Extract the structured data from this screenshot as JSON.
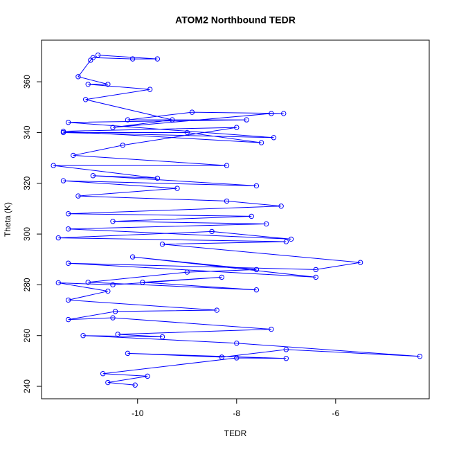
{
  "chart_data": {
    "type": "scatter",
    "title": "ATOM2 Northbound TEDR",
    "x_label": "TEDR",
    "y_label": "Theta (K)",
    "connect": true,
    "color": "#0000ff",
    "marker": "circle-open",
    "xlim": [
      -11.94,
      -4.11
    ],
    "ylim": [
      235.1,
      376.4
    ],
    "xticks": [
      -10,
      -8,
      -6
    ],
    "yticks": [
      240,
      260,
      280,
      300,
      320,
      340,
      360
    ],
    "x": [
      -10.8,
      -9.6,
      -10.1,
      -10.9,
      -10.95,
      -11.2,
      -10.6,
      -11.0,
      -9.75,
      -11.05,
      -9.3,
      -10.5,
      -7.3,
      -7.05,
      -8.9,
      -10.2,
      -7.8,
      -11.4,
      -7.25,
      -11.5,
      -9.0,
      -7.5,
      -11.5,
      -8.0,
      -10.3,
      -11.3,
      -8.2,
      -11.7,
      -9.6,
      -10.9,
      -7.6,
      -11.5,
      -9.2,
      -11.2,
      -8.2,
      -7.1,
      -11.4,
      -7.7,
      -10.5,
      -7.4,
      -11.4,
      -6.9,
      -8.5,
      -11.6,
      -7.0,
      -9.5,
      -5.5,
      -6.4,
      -11.4,
      -6.4,
      -10.1,
      -7.6,
      -9.0,
      -11.0,
      -7.6,
      -9.9,
      -8.3,
      -10.5,
      -11.6,
      -10.6,
      -11.4,
      -8.4,
      -10.45,
      -11.4,
      -10.5,
      -7.3,
      -10.4,
      -9.5,
      -11.1,
      -8.0,
      -4.3,
      -7.0,
      -8.3,
      -10.2,
      -7.0,
      -8.0,
      -10.7,
      -9.8,
      -10.6,
      -10.05
    ],
    "values": [
      370.5,
      369,
      369,
      369.5,
      368.5,
      362,
      359,
      359,
      357,
      353,
      345,
      342,
      347.5,
      347.5,
      348,
      345,
      345,
      344,
      338,
      340,
      340,
      336,
      340.5,
      342,
      335,
      331,
      327,
      327,
      322,
      323,
      319,
      321,
      318,
      315,
      313,
      311,
      308,
      307,
      305,
      304,
      302,
      298,
      301,
      298.5,
      297,
      296,
      288.8,
      286,
      288.5,
      283,
      291,
      286,
      285,
      281,
      278,
      281,
      283,
      280,
      280.8,
      277.5,
      274,
      270,
      269.5,
      266.3,
      267,
      262.5,
      260.5,
      259.5,
      260,
      257,
      251.8,
      254.5,
      251.5,
      253,
      251,
      251.2,
      245,
      244,
      241.5,
      240.5
    ]
  }
}
